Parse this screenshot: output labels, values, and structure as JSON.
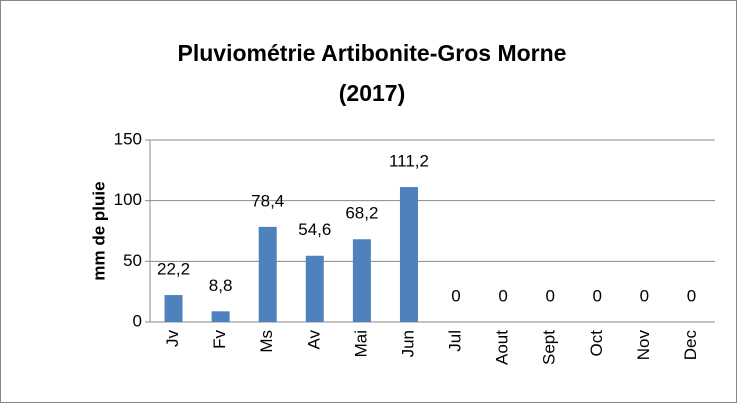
{
  "chart_data": {
    "type": "bar",
    "title": [
      "Pluviométrie Artibonite-Gros Morne",
      "(2017)"
    ],
    "y_label": "mm de pluie",
    "categories": [
      "Jv",
      "Fv",
      "Ms",
      "Av",
      "Mai",
      "Jun",
      "Jul",
      "Aout",
      "Sept",
      "Oct",
      "Nov",
      "Dec"
    ],
    "values": [
      22.2,
      8.8,
      78.4,
      54.6,
      68.2,
      111.2,
      0,
      0,
      0,
      0,
      0,
      0
    ],
    "value_labels": [
      "22,2",
      "8,8",
      "78,4",
      "54,6",
      "68,2",
      "111,2",
      "0",
      "0",
      "0",
      "0",
      "0",
      "0"
    ],
    "color": "#4f81bd",
    "ylim": [
      0,
      150
    ],
    "yticks": [
      0,
      50,
      100,
      150
    ],
    "grid": true
  }
}
